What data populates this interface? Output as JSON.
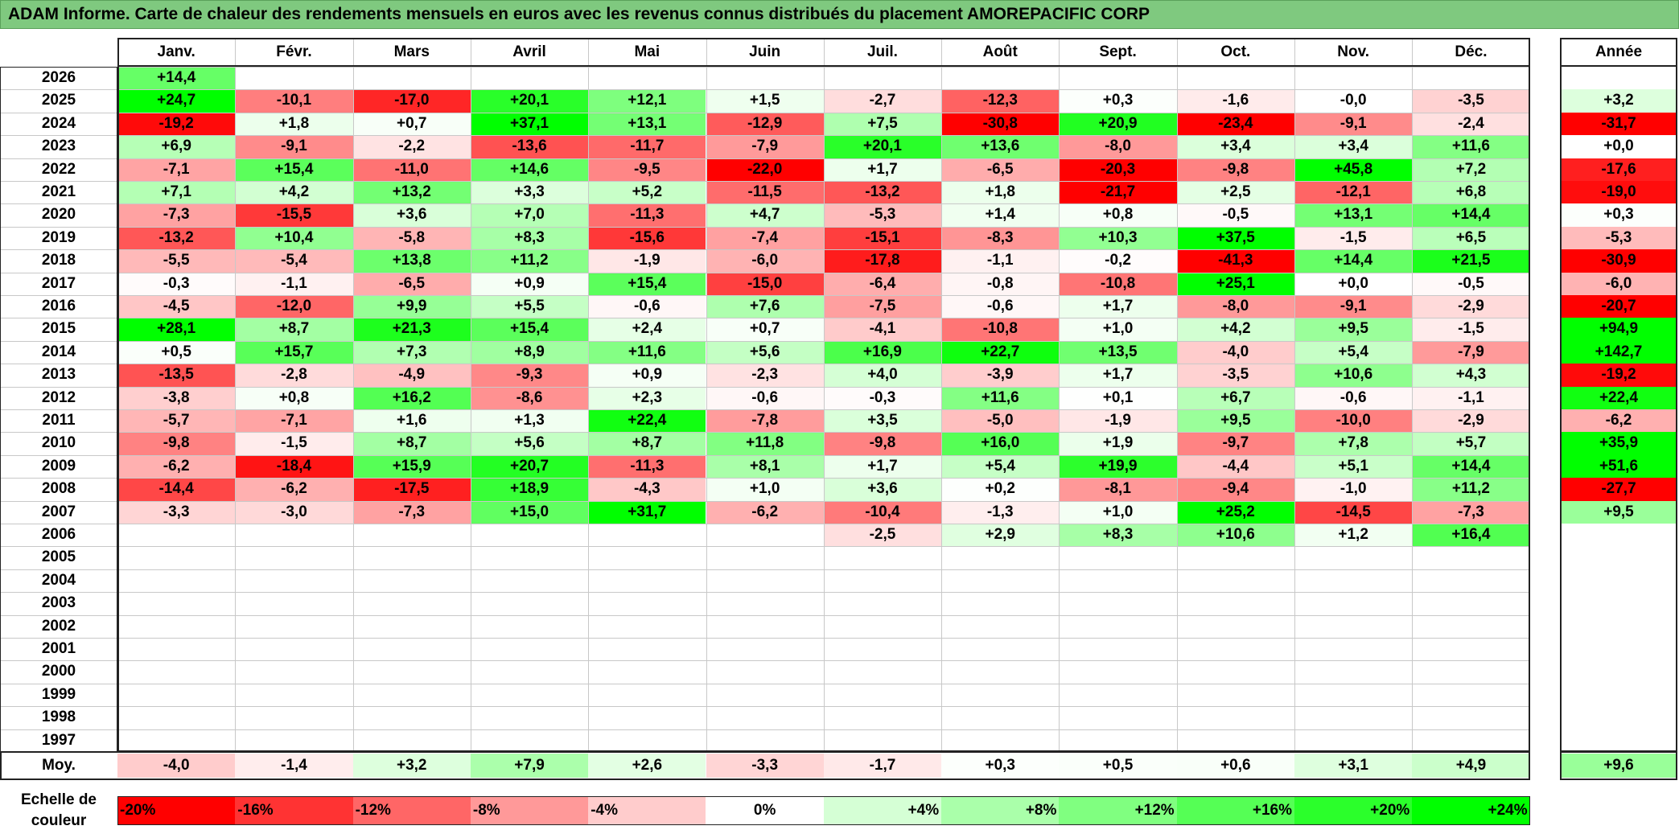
{
  "title": "ADAM Informe. Carte de chaleur des rendements mensuels en euros avec les revenus connus distribués du placement AMOREPACIFIC CORP",
  "months": [
    "Janv.",
    "Févr.",
    "Mars",
    "Avril",
    "Mai",
    "Juin",
    "Juil.",
    "Août",
    "Sept.",
    "Oct.",
    "Nov.",
    "Déc."
  ],
  "annual_header": "Année",
  "avg_label": "Moy.",
  "scale_label_line1": "Echelle de",
  "scale_label_line2": "couleur",
  "colors": {
    "negative_max": "#ff0000",
    "neutral": "#ffffff",
    "positive_max": "#00ff00",
    "title_bg": "#7fc97f"
  },
  "chart_data": {
    "type": "heatmap",
    "title": "ADAM Informe. Carte de chaleur des rendements mensuels en euros avec les revenus connus distribués du placement AMOREPACIFIC CORP",
    "columns": [
      "Janv.",
      "Févr.",
      "Mars",
      "Avril",
      "Mai",
      "Juin",
      "Juil.",
      "Août",
      "Sept.",
      "Oct.",
      "Nov.",
      "Déc.",
      "Année"
    ],
    "rows": [
      {
        "year": "2026",
        "months": [
          "+14,4",
          null,
          null,
          null,
          null,
          null,
          null,
          null,
          null,
          null,
          null,
          null
        ],
        "annual": null
      },
      {
        "year": "2025",
        "months": [
          "+24,7",
          "-10,1",
          "-17,0",
          "+20,1",
          "+12,1",
          "+1,5",
          "-2,7",
          "-12,3",
          "+0,3",
          "-1,6",
          "-0,0",
          "-3,5"
        ],
        "annual": "+3,2"
      },
      {
        "year": "2024",
        "months": [
          "-19,2",
          "+1,8",
          "+0,7",
          "+37,1",
          "+13,1",
          "-12,9",
          "+7,5",
          "-30,8",
          "+20,9",
          "-23,4",
          "-9,1",
          "-2,4"
        ],
        "annual": "-31,7"
      },
      {
        "year": "2023",
        "months": [
          "+6,9",
          "-9,1",
          "-2,2",
          "-13,6",
          "-11,7",
          "-7,9",
          "+20,1",
          "+13,6",
          "-8,0",
          "+3,4",
          "+3,4",
          "+11,6"
        ],
        "annual": "+0,0"
      },
      {
        "year": "2022",
        "months": [
          "-7,1",
          "+15,4",
          "-11,0",
          "+14,6",
          "-9,5",
          "-22,0",
          "+1,7",
          "-6,5",
          "-20,3",
          "-9,8",
          "+45,8",
          "+7,2"
        ],
        "annual": "-17,6"
      },
      {
        "year": "2021",
        "months": [
          "+7,1",
          "+4,2",
          "+13,2",
          "+3,3",
          "+5,2",
          "-11,5",
          "-13,2",
          "+1,8",
          "-21,7",
          "+2,5",
          "-12,1",
          "+6,8"
        ],
        "annual": "-19,0"
      },
      {
        "year": "2020",
        "months": [
          "-7,3",
          "-15,5",
          "+3,6",
          "+7,0",
          "-11,3",
          "+4,7",
          "-5,3",
          "+1,4",
          "+0,8",
          "-0,5",
          "+13,1",
          "+14,4"
        ],
        "annual": "+0,3"
      },
      {
        "year": "2019",
        "months": [
          "-13,2",
          "+10,4",
          "-5,8",
          "+8,3",
          "-15,6",
          "-7,4",
          "-15,1",
          "-8,3",
          "+10,3",
          "+37,5",
          "-1,5",
          "+6,5"
        ],
        "annual": "-5,3"
      },
      {
        "year": "2018",
        "months": [
          "-5,5",
          "-5,4",
          "+13,8",
          "+11,2",
          "-1,9",
          "-6,0",
          "-17,8",
          "-1,1",
          "-0,2",
          "-41,3",
          "+14,4",
          "+21,5"
        ],
        "annual": "-30,9"
      },
      {
        "year": "2017",
        "months": [
          "-0,3",
          "-1,1",
          "-6,5",
          "+0,9",
          "+15,4",
          "-15,0",
          "-6,4",
          "-0,8",
          "-10,8",
          "+25,1",
          "+0,0",
          "-0,5"
        ],
        "annual": "-6,0"
      },
      {
        "year": "2016",
        "months": [
          "-4,5",
          "-12,0",
          "+9,9",
          "+5,5",
          "-0,6",
          "+7,6",
          "-7,5",
          "-0,6",
          "+1,7",
          "-8,0",
          "-9,1",
          "-2,9"
        ],
        "annual": "-20,7"
      },
      {
        "year": "2015",
        "months": [
          "+28,1",
          "+8,7",
          "+21,3",
          "+15,4",
          "+2,4",
          "+0,7",
          "-4,1",
          "-10,8",
          "+1,0",
          "+4,2",
          "+9,5",
          "-1,5"
        ],
        "annual": "+94,9"
      },
      {
        "year": "2014",
        "months": [
          "+0,5",
          "+15,7",
          "+7,3",
          "+8,9",
          "+11,6",
          "+5,6",
          "+16,9",
          "+22,7",
          "+13,5",
          "-4,0",
          "+5,4",
          "-7,9"
        ],
        "annual": "+142,7"
      },
      {
        "year": "2013",
        "months": [
          "-13,5",
          "-2,8",
          "-4,9",
          "-9,3",
          "+0,9",
          "-2,3",
          "+4,0",
          "-3,9",
          "+1,7",
          "-3,5",
          "+10,6",
          "+4,3"
        ],
        "annual": "-19,2"
      },
      {
        "year": "2012",
        "months": [
          "-3,8",
          "+0,8",
          "+16,2",
          "-8,6",
          "+2,3",
          "-0,6",
          "-0,3",
          "+11,6",
          "+0,1",
          "+6,7",
          "-0,6",
          "-1,1"
        ],
        "annual": "+22,4"
      },
      {
        "year": "2011",
        "months": [
          "-5,7",
          "-7,1",
          "+1,6",
          "+1,3",
          "+22,4",
          "-7,8",
          "+3,5",
          "-5,0",
          "-1,9",
          "+9,5",
          "-10,0",
          "-2,9"
        ],
        "annual": "-6,2"
      },
      {
        "year": "2010",
        "months": [
          "-9,8",
          "-1,5",
          "+8,7",
          "+5,6",
          "+8,7",
          "+11,8",
          "-9,8",
          "+16,0",
          "+1,9",
          "-9,7",
          "+7,8",
          "+5,7"
        ],
        "annual": "+35,9"
      },
      {
        "year": "2009",
        "months": [
          "-6,2",
          "-18,4",
          "+15,9",
          "+20,7",
          "-11,3",
          "+8,1",
          "+1,7",
          "+5,4",
          "+19,9",
          "-4,4",
          "+5,1",
          "+14,4"
        ],
        "annual": "+51,6"
      },
      {
        "year": "2008",
        "months": [
          "-14,4",
          "-6,2",
          "-17,5",
          "+18,9",
          "-4,3",
          "+1,0",
          "+3,6",
          "+0,2",
          "-8,1",
          "-9,4",
          "-1,0",
          "+11,2"
        ],
        "annual": "-27,7"
      },
      {
        "year": "2007",
        "months": [
          "-3,3",
          "-3,0",
          "-7,3",
          "+15,0",
          "+31,7",
          "-6,2",
          "-10,4",
          "-1,3",
          "+1,0",
          "+25,2",
          "-14,5",
          "-7,3"
        ],
        "annual": "+9,5"
      },
      {
        "year": "2006",
        "months": [
          null,
          null,
          null,
          null,
          null,
          null,
          "-2,5",
          "+2,9",
          "+8,3",
          "+10,6",
          "+1,2",
          "+16,4"
        ],
        "annual": null
      },
      {
        "year": "2005",
        "months": [
          null,
          null,
          null,
          null,
          null,
          null,
          null,
          null,
          null,
          null,
          null,
          null
        ],
        "annual": null
      },
      {
        "year": "2004",
        "months": [
          null,
          null,
          null,
          null,
          null,
          null,
          null,
          null,
          null,
          null,
          null,
          null
        ],
        "annual": null
      },
      {
        "year": "2003",
        "months": [
          null,
          null,
          null,
          null,
          null,
          null,
          null,
          null,
          null,
          null,
          null,
          null
        ],
        "annual": null
      },
      {
        "year": "2002",
        "months": [
          null,
          null,
          null,
          null,
          null,
          null,
          null,
          null,
          null,
          null,
          null,
          null
        ],
        "annual": null
      },
      {
        "year": "2001",
        "months": [
          null,
          null,
          null,
          null,
          null,
          null,
          null,
          null,
          null,
          null,
          null,
          null
        ],
        "annual": null
      },
      {
        "year": "2000",
        "months": [
          null,
          null,
          null,
          null,
          null,
          null,
          null,
          null,
          null,
          null,
          null,
          null
        ],
        "annual": null
      },
      {
        "year": "1999",
        "months": [
          null,
          null,
          null,
          null,
          null,
          null,
          null,
          null,
          null,
          null,
          null,
          null
        ],
        "annual": null
      },
      {
        "year": "1998",
        "months": [
          null,
          null,
          null,
          null,
          null,
          null,
          null,
          null,
          null,
          null,
          null,
          null
        ],
        "annual": null
      },
      {
        "year": "1997",
        "months": [
          null,
          null,
          null,
          null,
          null,
          null,
          null,
          null,
          null,
          null,
          null,
          null
        ],
        "annual": null
      }
    ],
    "average": {
      "months": [
        "-4,0",
        "-1,4",
        "+3,2",
        "+7,9",
        "+2,6",
        "-3,3",
        "-1,7",
        "+0,3",
        "+0,5",
        "+0,6",
        "+3,1",
        "+4,9"
      ],
      "annual": "+9,6"
    },
    "color_scale": [
      {
        "label": "-20%",
        "value": -20
      },
      {
        "label": "-16%",
        "value": -16
      },
      {
        "label": "-12%",
        "value": -12
      },
      {
        "label": "-8%",
        "value": -8
      },
      {
        "label": "-4%",
        "value": -4
      },
      {
        "label": "0%",
        "value": 0
      },
      {
        "label": "+4%",
        "value": 4
      },
      {
        "label": "+8%",
        "value": 8
      },
      {
        "label": "+12%",
        "value": 12
      },
      {
        "label": "+16%",
        "value": 16
      },
      {
        "label": "+20%",
        "value": 20
      },
      {
        "label": "+24%",
        "value": 24
      }
    ]
  }
}
